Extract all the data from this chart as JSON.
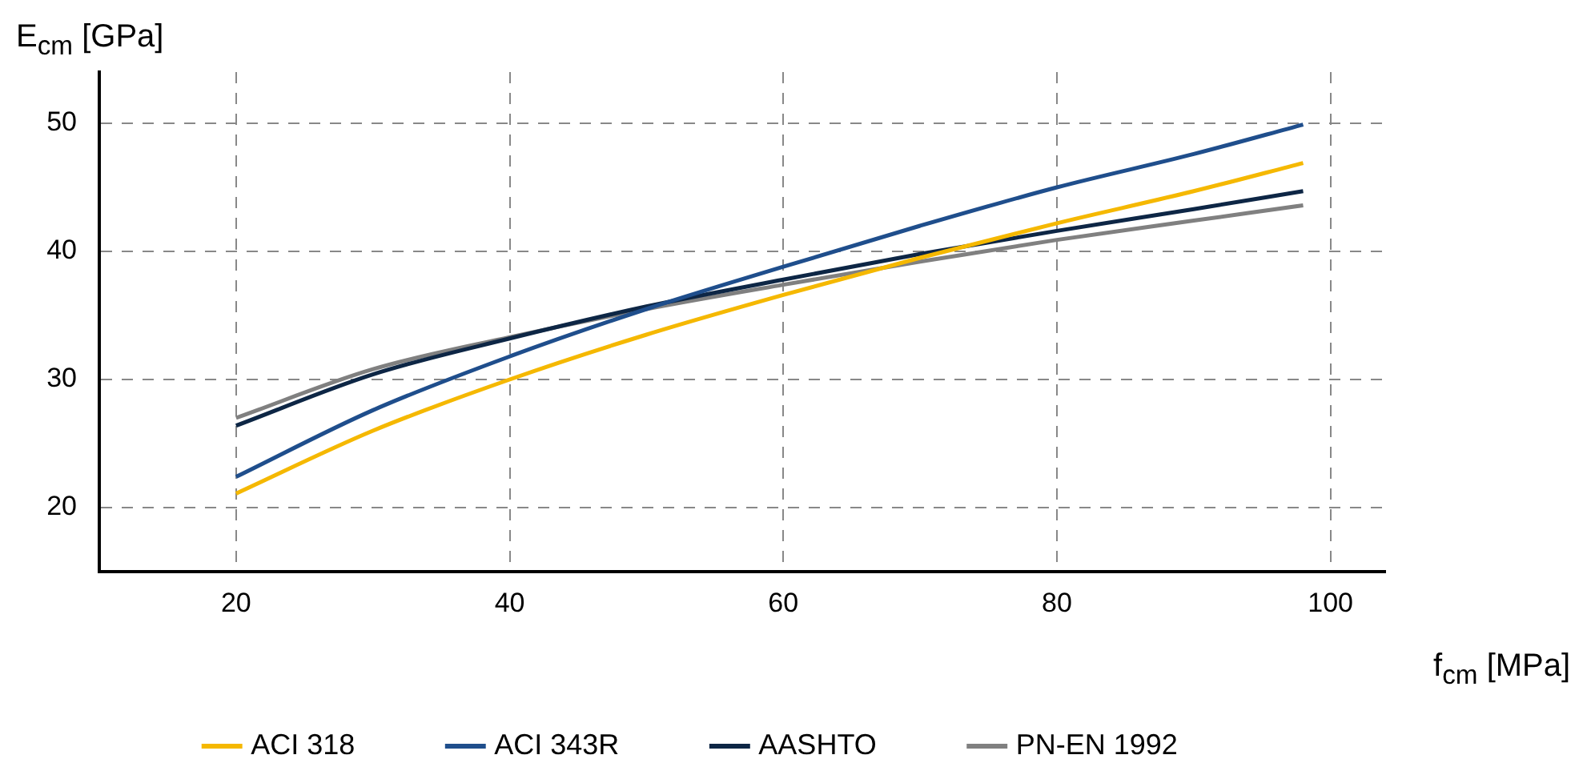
{
  "chart_data": {
    "type": "line",
    "xlabel": "f$_{cm}$ [MPa]",
    "ylabel": "E$_{cm}$ [GPa]",
    "x": [
      20,
      30,
      40,
      50,
      60,
      70,
      80,
      90,
      98
    ],
    "series": [
      {
        "name": "ACI 318",
        "color": "#f5b800",
        "values": [
          21.1,
          26.0,
          30.0,
          33.5,
          36.6,
          39.5,
          42.2,
          44.7,
          46.9
        ]
      },
      {
        "name": "ACI 343R",
        "color": "#1f4e8c",
        "values": [
          22.4,
          27.6,
          31.8,
          35.5,
          38.8,
          42.0,
          45.0,
          47.6,
          49.9
        ]
      },
      {
        "name": "AASHTO",
        "color": "#0d2645",
        "values": [
          26.4,
          30.4,
          33.2,
          35.7,
          37.8,
          39.8,
          41.6,
          43.3,
          44.7
        ]
      },
      {
        "name": "PN-EN 1992",
        "color": "#808080",
        "values": [
          27.0,
          30.8,
          33.3,
          35.5,
          37.4,
          39.2,
          40.9,
          42.4,
          43.6
        ]
      }
    ],
    "xlim": [
      10,
      104
    ],
    "ylim": [
      15,
      54
    ],
    "xticks": [
      20,
      40,
      60,
      80,
      100
    ],
    "yticks": [
      20,
      30,
      40,
      50
    ],
    "grid": true,
    "legend": "bottom",
    "marker": "none",
    "line_style": "solid"
  }
}
